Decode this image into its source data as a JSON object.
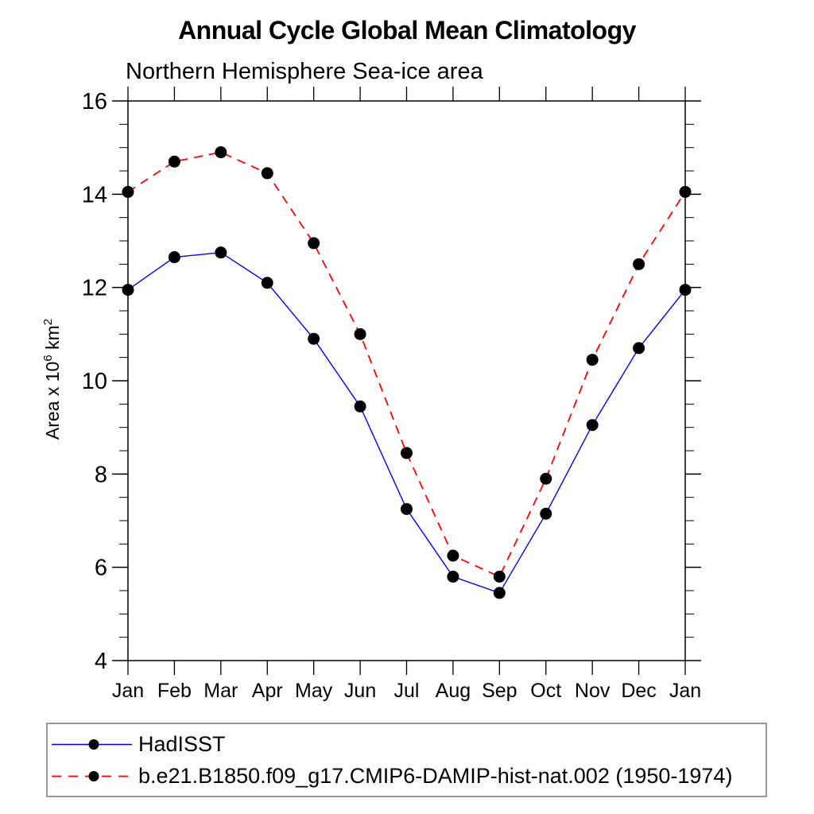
{
  "title": "Annual Cycle Global Mean Climatology",
  "subtitle": "Northern Hemisphere Sea-ice area",
  "y_axis_label": {
    "prefix": "Area x 10",
    "superscript_1": "6",
    "middle": " km",
    "superscript_2": "2"
  },
  "chart_data": {
    "type": "line",
    "title": "Annual Cycle Global Mean Climatology",
    "subtitle": "Northern Hemisphere Sea-ice area",
    "xlabel": "",
    "ylabel": "Area x 10^6 km^2",
    "categories": [
      "Jan",
      "Feb",
      "Mar",
      "Apr",
      "May",
      "Jun",
      "Jul",
      "Aug",
      "Sep",
      "Oct",
      "Nov",
      "Dec",
      "Jan"
    ],
    "series": [
      {
        "name": "HadISST",
        "color": "#0000ff",
        "line_style": "solid",
        "marker": "filled-circle",
        "marker_color": "#000000",
        "values": [
          11.95,
          12.65,
          12.75,
          12.1,
          10.9,
          9.45,
          7.25,
          5.8,
          5.45,
          7.15,
          9.05,
          10.7,
          11.95
        ]
      },
      {
        "name": "b.e21.B1850.f09_g17.CMIP6-DAMIP-hist-nat.002 (1950-1974)",
        "color": "#ff0000",
        "line_style": "dashed",
        "marker": "filled-circle",
        "marker_color": "#000000",
        "values": [
          14.05,
          14.7,
          14.9,
          14.45,
          12.95,
          11.0,
          8.45,
          6.25,
          5.8,
          7.9,
          10.45,
          12.5,
          14.05
        ]
      }
    ],
    "ylim": [
      4,
      16
    ],
    "yticks": [
      4,
      6,
      8,
      10,
      12,
      14,
      16
    ],
    "y_minor_step": 0.5,
    "grid": false,
    "legend_position": "bottom",
    "frame_color": "#000000"
  }
}
